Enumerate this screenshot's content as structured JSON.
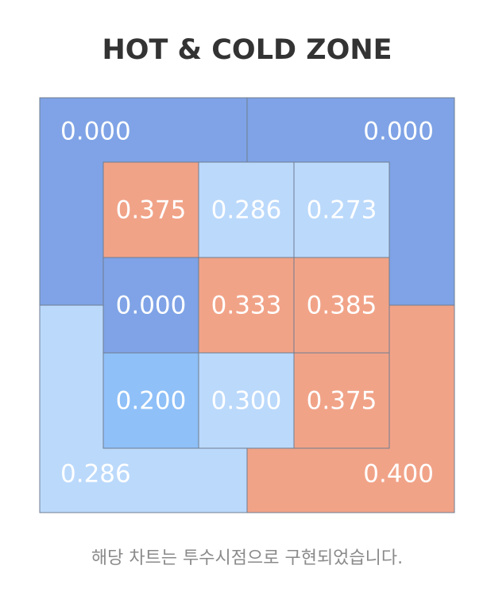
{
  "title": "HOT & COLD ZONE",
  "outer": [
    {
      "label": "0.000",
      "color": "#7fa3e6"
    },
    {
      "label": "0.000",
      "color": "#7fa3e6"
    },
    {
      "label": "0.286",
      "color": "#bbd9fb"
    },
    {
      "label": "0.400",
      "color": "#f1a388"
    }
  ],
  "inner": [
    [
      {
        "label": "0.375",
        "color": "#f1a388"
      },
      {
        "label": "0.286",
        "color": "#bbd9fb"
      },
      {
        "label": "0.273",
        "color": "#bbd9fb"
      }
    ],
    [
      {
        "label": "0.000",
        "color": "#7fa3e6"
      },
      {
        "label": "0.333",
        "color": "#f1a388"
      },
      {
        "label": "0.385",
        "color": "#f1a388"
      }
    ],
    [
      {
        "label": "0.200",
        "color": "#8fc0f8"
      },
      {
        "label": "0.300",
        "color": "#bbd9fb"
      },
      {
        "label": "0.375",
        "color": "#f1a388"
      }
    ]
  ],
  "footer": "해당 차트는 투수시점으로 구현되었습니다."
}
